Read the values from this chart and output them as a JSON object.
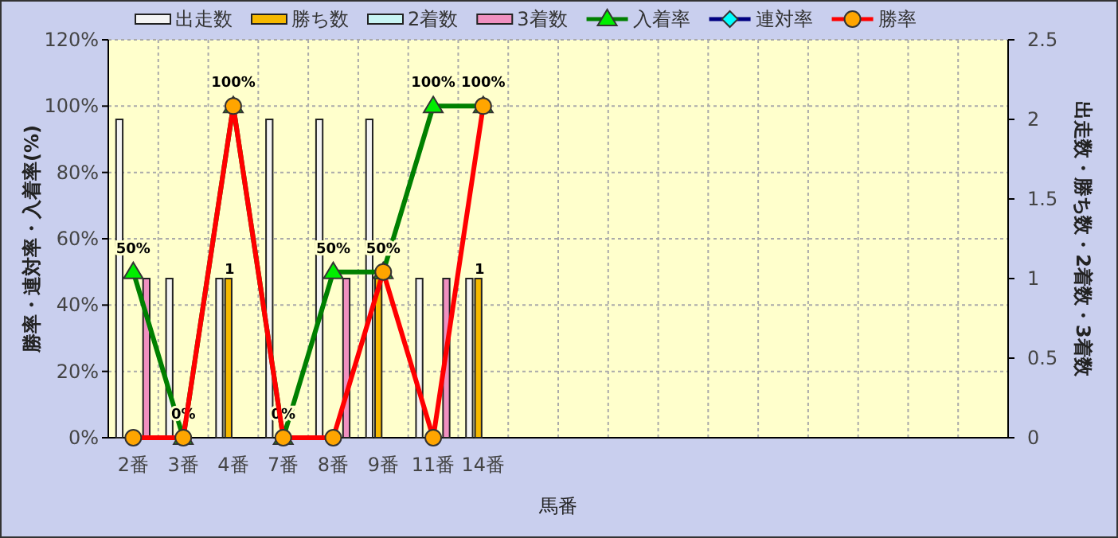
{
  "chart_data": {
    "type": "bar",
    "categories": [
      "2番",
      "3番",
      "4番",
      "7番",
      "8番",
      "9番",
      "11番",
      "14番",
      null,
      null,
      null,
      null,
      null,
      null,
      null,
      null,
      null,
      null
    ],
    "series": [
      {
        "name": "出走数",
        "color": "#f4f4f4",
        "axis": "y2",
        "values": [
          2,
          1,
          1,
          2,
          2,
          2,
          1,
          1,
          null,
          null,
          null,
          null,
          null,
          null,
          null,
          null,
          null,
          null
        ]
      },
      {
        "name": "勝ち数",
        "color": "#f5b800",
        "axis": "y2",
        "values": [
          0,
          0,
          1,
          0,
          0,
          1,
          0,
          1,
          null,
          null,
          null,
          null,
          null,
          null,
          null,
          null,
          null,
          null
        ],
        "value_labels": [
          null,
          null,
          "1",
          null,
          null,
          null,
          null,
          "1",
          null,
          null,
          null,
          null,
          null,
          null,
          null,
          null,
          null,
          null
        ]
      },
      {
        "name": "2着数",
        "color": "#c8f4f4",
        "axis": "y2",
        "values": [
          0,
          0,
          0,
          0,
          0,
          0,
          0,
          0,
          null,
          null,
          null,
          null,
          null,
          null,
          null,
          null,
          null,
          null
        ]
      },
      {
        "name": "3着数",
        "color": "#f090c0",
        "axis": "y2",
        "values": [
          1,
          0,
          0,
          0,
          1,
          0,
          1,
          0,
          null,
          null,
          null,
          null,
          null,
          null,
          null,
          null,
          null,
          null
        ]
      },
      {
        "name": "入着率",
        "type": "line",
        "color": "#008000",
        "marker": "triangle",
        "values": [
          50,
          0,
          100,
          0,
          50,
          50,
          100,
          100,
          null,
          null,
          null,
          null,
          null,
          null,
          null,
          null,
          null,
          null
        ],
        "value_labels": [
          "50%",
          "0%",
          "100%",
          "0%",
          "50%",
          "50%",
          "100%",
          "100%",
          null,
          null,
          null,
          null,
          null,
          null,
          null,
          null,
          null,
          null
        ]
      },
      {
        "name": "連対率",
        "type": "line",
        "color": "#000080",
        "marker": "diamond",
        "values": [
          null,
          null,
          null,
          null,
          null,
          null,
          null,
          null,
          null,
          null,
          null,
          null,
          null,
          null,
          null,
          null,
          null,
          null
        ]
      },
      {
        "name": "勝率",
        "type": "line",
        "color": "#ff0000",
        "marker": "circle",
        "values": [
          0,
          0,
          100,
          0,
          0,
          50,
          0,
          100,
          null,
          null,
          null,
          null,
          null,
          null,
          null,
          null,
          null,
          null
        ]
      }
    ],
    "ylim": [
      0,
      120
    ],
    "yticks": [
      {
        "value": 0,
        "label": "0%"
      },
      {
        "value": 20,
        "label": "20%"
      },
      {
        "value": 40,
        "label": "40%"
      },
      {
        "value": 60,
        "label": "60%"
      },
      {
        "value": 80,
        "label": "80%"
      },
      {
        "value": 100,
        "label": "100%"
      },
      {
        "value": 120,
        "label": "120%"
      }
    ],
    "y2lim": [
      0,
      2.5
    ],
    "y2ticks": [
      0,
      0.5,
      1,
      1.5,
      2,
      2.5
    ],
    "xlabel": "馬番",
    "ylabel": "勝率・連対率・入着率(%)",
    "y2label": "出走数・勝ち数・2着数・3着数",
    "grid": true,
    "legend": "top"
  }
}
